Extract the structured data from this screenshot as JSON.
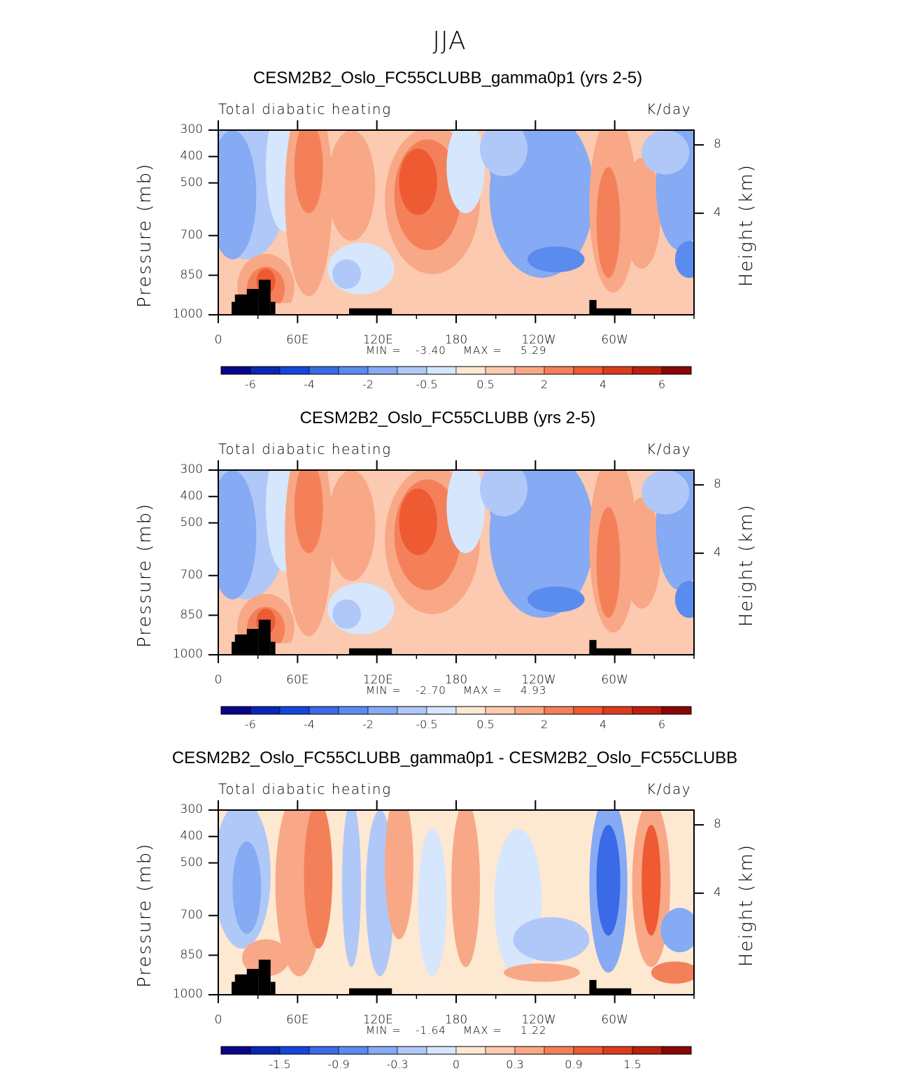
{
  "title": "JJA",
  "chart_data": [
    {
      "type": "heatmap",
      "title": "CESM2B2_Oslo_FC55CLUBB_gamma0p1 (yrs 2-5)",
      "left_string": "Total diabatic heating",
      "right_string": "K/day",
      "ylabel": "Pressure (mb)",
      "ylabel_right": "Height (km)",
      "x_ticks": [
        "0",
        "60E",
        "120E",
        "180",
        "120W",
        "60W"
      ],
      "y_ticks": [
        "300",
        "400",
        "500",
        "700",
        "850",
        "1000"
      ],
      "height_ticks": [
        "8",
        "4"
      ],
      "min_label": "MIN =",
      "min_value": "-3.40",
      "max_label": "MAX =",
      "max_value": "5.29",
      "colorbar_labels": [
        "-6",
        "-4",
        "-2",
        "-0.5",
        "0.5",
        "2",
        "4",
        "6"
      ],
      "colorbar_levels": [
        -7,
        -6,
        -5,
        -4,
        -3,
        -2,
        -1,
        -0.5,
        0,
        0.5,
        1,
        2,
        3,
        4,
        5,
        6,
        7
      ],
      "colorbar_colors": [
        "#08068a",
        "#0a26b4",
        "#1446dc",
        "#3a6ae6",
        "#5a8cf0",
        "#86aaf4",
        "#b0c8f8",
        "#d6e6fc",
        "#fde8d2",
        "#fccab0",
        "#f8a886",
        "#f4805a",
        "#ee5a32",
        "#dc3c1c",
        "#ba200e",
        "#8a0606"
      ]
    },
    {
      "type": "heatmap",
      "title": "CESM2B2_Oslo_FC55CLUBB (yrs 2-5)",
      "left_string": "Total diabatic heating",
      "right_string": "K/day",
      "ylabel": "Pressure (mb)",
      "ylabel_right": "Height (km)",
      "x_ticks": [
        "0",
        "60E",
        "120E",
        "180",
        "120W",
        "60W"
      ],
      "y_ticks": [
        "300",
        "400",
        "500",
        "700",
        "850",
        "1000"
      ],
      "height_ticks": [
        "8",
        "4"
      ],
      "min_label": "MIN =",
      "min_value": "-2.70",
      "max_label": "MAX =",
      "max_value": "4.93",
      "colorbar_labels": [
        "-6",
        "-4",
        "-2",
        "-0.5",
        "0.5",
        "2",
        "4",
        "6"
      ],
      "colorbar_levels": [
        -7,
        -6,
        -5,
        -4,
        -3,
        -2,
        -1,
        -0.5,
        0,
        0.5,
        1,
        2,
        3,
        4,
        5,
        6,
        7
      ],
      "colorbar_colors": [
        "#08068a",
        "#0a26b4",
        "#1446dc",
        "#3a6ae6",
        "#5a8cf0",
        "#86aaf4",
        "#b0c8f8",
        "#d6e6fc",
        "#fde8d2",
        "#fccab0",
        "#f8a886",
        "#f4805a",
        "#ee5a32",
        "#dc3c1c",
        "#ba200e",
        "#8a0606"
      ]
    },
    {
      "type": "heatmap",
      "title": "CESM2B2_Oslo_FC55CLUBB_gamma0p1 - CESM2B2_Oslo_FC55CLUBB",
      "left_string": "Total diabatic heating",
      "right_string": "K/day",
      "ylabel": "Pressure (mb)",
      "ylabel_right": "Height (km)",
      "x_ticks": [
        "0",
        "60E",
        "120E",
        "180",
        "120W",
        "60W"
      ],
      "y_ticks": [
        "300",
        "400",
        "500",
        "700",
        "850",
        "1000"
      ],
      "height_ticks": [
        "8",
        "4"
      ],
      "min_label": "MIN =",
      "min_value": "-1.64",
      "max_label": "MAX =",
      "max_value": "1.22",
      "colorbar_labels": [
        "-1.5",
        "-0.9",
        "-0.3",
        "0",
        "0.3",
        "0.9",
        "1.5"
      ],
      "colorbar_levels": [
        -2.1,
        -1.8,
        -1.5,
        -1.2,
        -0.9,
        -0.6,
        -0.3,
        -0.1,
        0,
        0.1,
        0.3,
        0.6,
        0.9,
        1.2,
        1.5,
        1.8,
        2.1
      ],
      "colorbar_colors": [
        "#08068a",
        "#0a26b4",
        "#1446dc",
        "#3a6ae6",
        "#5a8cf0",
        "#86aaf4",
        "#b0c8f8",
        "#d6e6fc",
        "#fde8d2",
        "#fccab0",
        "#f8a886",
        "#f4805a",
        "#ee5a32",
        "#dc3c1c",
        "#ba200e",
        "#8a0606"
      ]
    }
  ]
}
